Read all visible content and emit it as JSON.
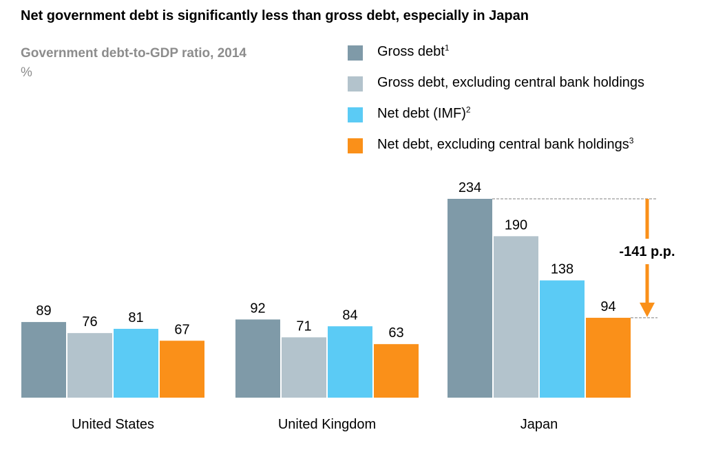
{
  "title": "Net government debt is significantly less than gross debt, especially in Japan",
  "subtitle": "Government debt-to-GDP ratio, 2014",
  "unit": "%",
  "legend": [
    {
      "label": "Gross debt",
      "sup": "1",
      "color": "#7f9aa8"
    },
    {
      "label": "Gross debt, excluding central bank holdings",
      "sup": "",
      "color": "#b3c3cc"
    },
    {
      "label": "Net debt (IMF)",
      "sup": "2",
      "color": "#5bcbf5"
    },
    {
      "label": "Net debt, excluding central bank holdings",
      "sup": "3",
      "color": "#fa9019"
    }
  ],
  "chart_data": {
    "type": "bar",
    "title": "Net government debt is significantly less than gross debt, especially in Japan",
    "subtitle": "Government debt-to-GDP ratio, 2014",
    "ylabel": "%",
    "categories": [
      "United States",
      "United Kingdom",
      "Japan"
    ],
    "series": [
      {
        "name": "Gross debt",
        "values": [
          89,
          92,
          234
        ],
        "color": "#7f9aa8"
      },
      {
        "name": "Gross debt, excluding central bank holdings",
        "values": [
          76,
          71,
          190
        ],
        "color": "#b3c3cc"
      },
      {
        "name": "Net debt (IMF)",
        "values": [
          81,
          84,
          138
        ],
        "color": "#5bcbf5"
      },
      {
        "name": "Net debt, excluding central bank holdings",
        "values": [
          67,
          63,
          94
        ],
        "color": "#fa9019"
      }
    ],
    "ylim": [
      0,
      234
    ],
    "grid": false,
    "legend": "top-right",
    "annotation": {
      "category": "Japan",
      "from_series": 0,
      "to_series": 3,
      "label": "-141 p.p.",
      "color": "#fa9019"
    }
  }
}
